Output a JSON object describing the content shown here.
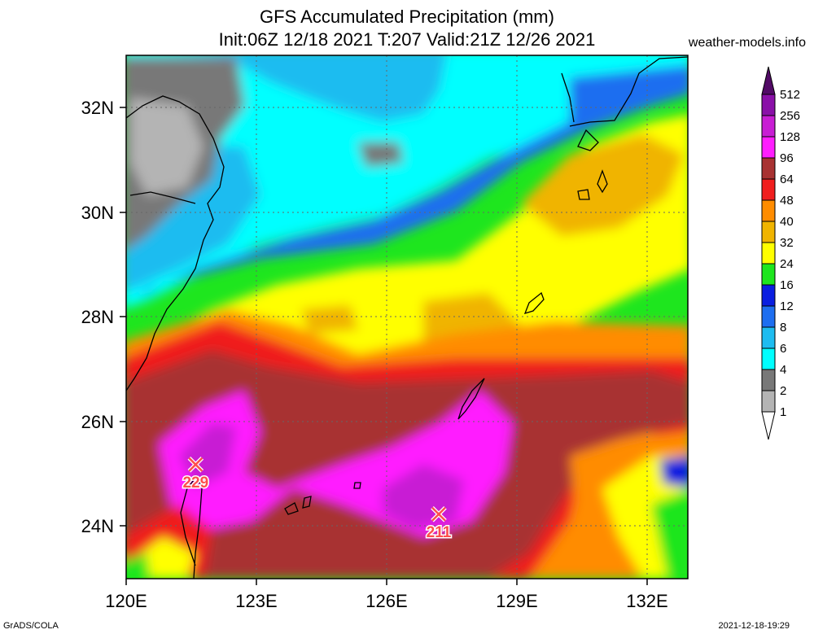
{
  "title": {
    "line1": "GFS Accumulated Precipitation (mm)",
    "line2": "Init:06Z 12/18 2021 T:207 Valid:21Z 12/26 2021"
  },
  "source": "weather-models.info",
  "footer": {
    "left": "GrADS/COLA",
    "right": "2021-12-18-19:29"
  },
  "map": {
    "lon_range": [
      120,
      133
    ],
    "lat_range": [
      23,
      33
    ],
    "x_ticks": [
      "120E",
      "123E",
      "126E",
      "129E",
      "132E"
    ],
    "y_ticks": [
      "24N",
      "26N",
      "28N",
      "30N",
      "32N"
    ]
  },
  "colorbar": {
    "levels": [
      "512",
      "256",
      "128",
      "96",
      "64",
      "48",
      "40",
      "32",
      "24",
      "16",
      "12",
      "8",
      "6",
      "4",
      "2",
      "1"
    ],
    "colors": [
      "#520a66",
      "#8a10a8",
      "#c81ed4",
      "#ff1eff",
      "#a83232",
      "#f01e1e",
      "#ff8c00",
      "#f0b400",
      "#ffff00",
      "#1ee61e",
      "#0a1ee0",
      "#1e6ef0",
      "#1ebcf0",
      "#00ffff",
      "#787878",
      "#b4b4b4",
      "#ffffff"
    ]
  },
  "maxima": [
    {
      "value": "229",
      "lon": 121.6,
      "lat": 25.3
    },
    {
      "value": "211",
      "lon": 127.2,
      "lat": 24.3
    }
  ]
}
